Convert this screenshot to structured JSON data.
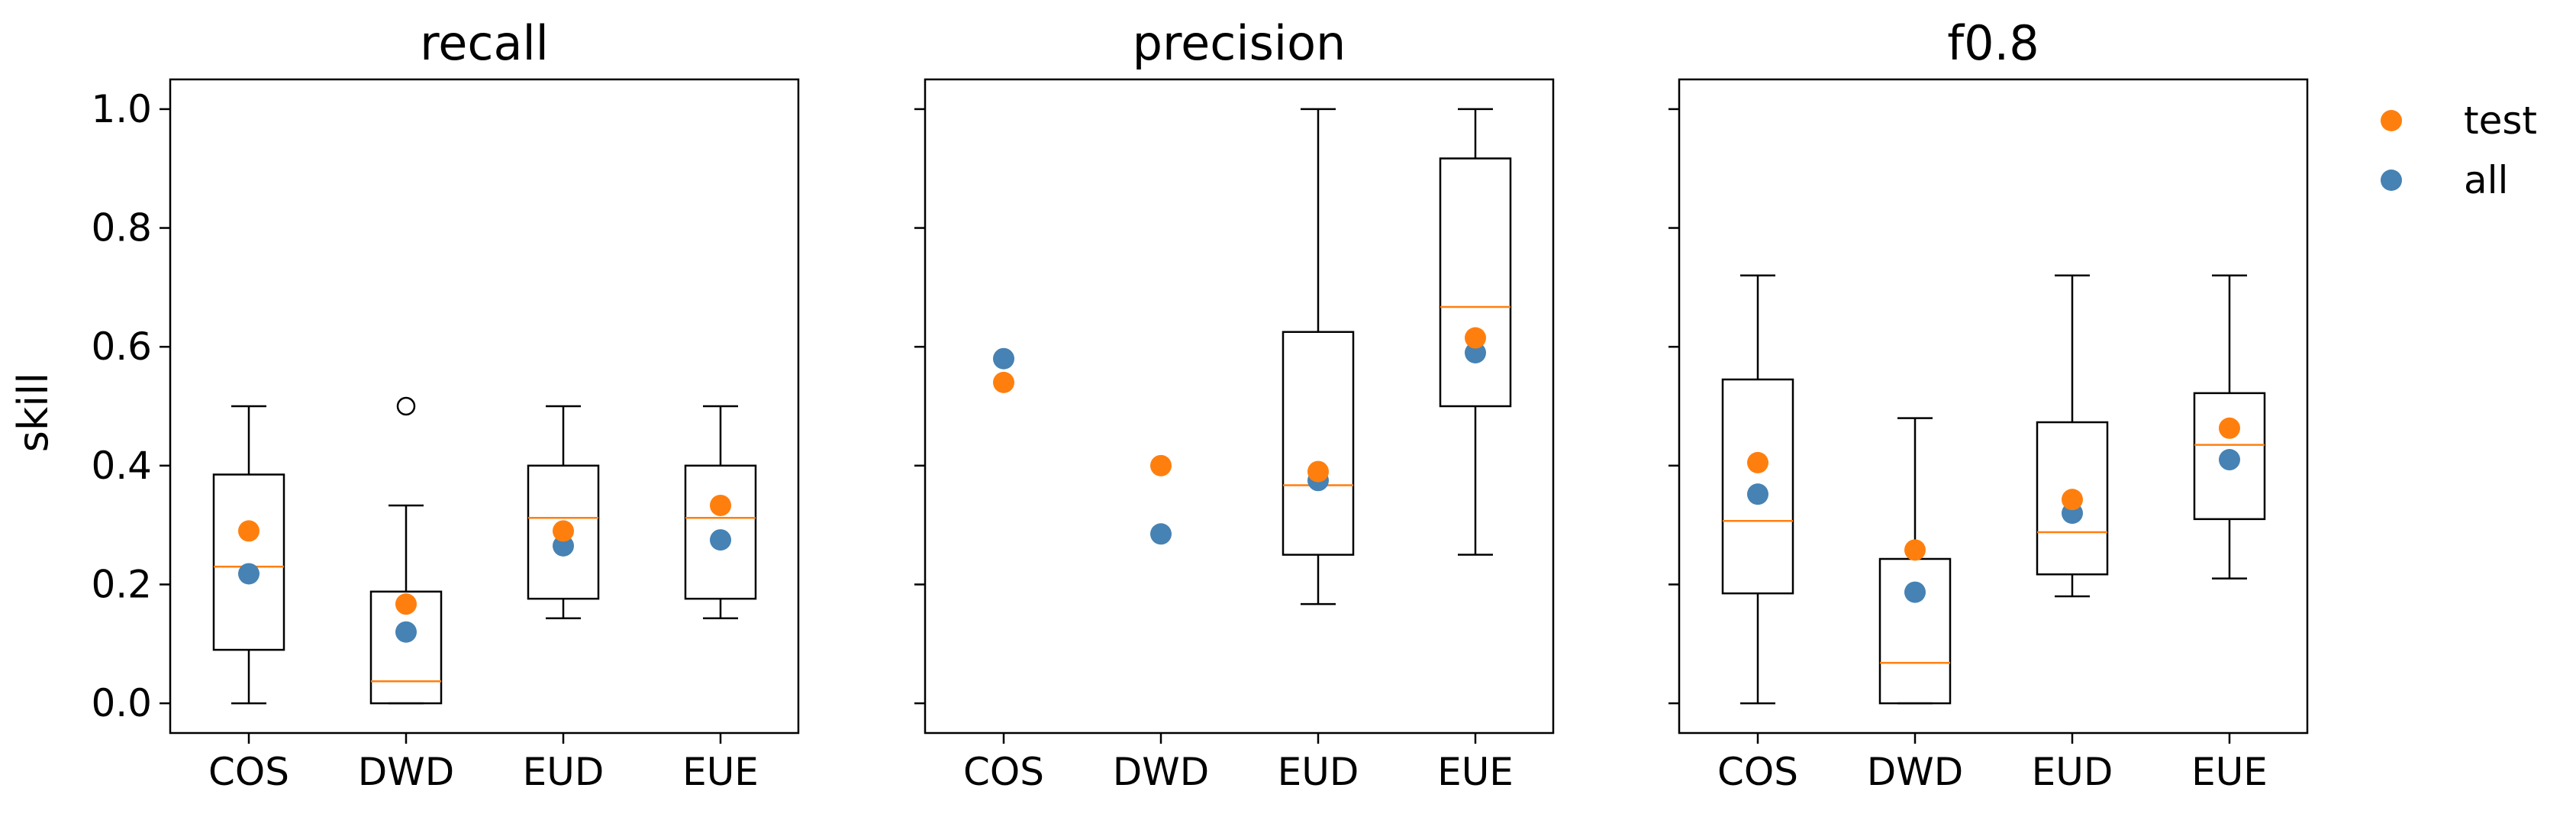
{
  "chart_data": {
    "type": "boxplot",
    "ylabel": "skill",
    "ylim": [
      -0.05,
      1.05
    ],
    "yticks": [
      0.0,
      0.2,
      0.4,
      0.6,
      0.8,
      1.0
    ],
    "ytick_labels": [
      "0.0",
      "0.2",
      "0.4",
      "0.6",
      "0.8",
      "1.0"
    ],
    "categories": [
      "COS",
      "DWD",
      "EUD",
      "EUE"
    ],
    "legend": {
      "position": "outside-right",
      "entries": [
        {
          "label": "test",
          "color": "#ff7f0e"
        },
        {
          "label": "all",
          "color": "#4682b4"
        }
      ]
    },
    "colors": {
      "test": "#ff7f0e",
      "all": "#4682b4",
      "median": "#ff7f0e",
      "box": "#000000"
    },
    "panels": [
      {
        "title": "recall",
        "boxes": [
          {
            "category": "COS",
            "whisker_low": 0.0,
            "q1": 0.09,
            "median": 0.23,
            "q3": 0.385,
            "whisker_high": 0.5,
            "outliers": []
          },
          {
            "category": "DWD",
            "whisker_low": 0.0,
            "q1": 0.0,
            "median": 0.037,
            "q3": 0.188,
            "whisker_high": 0.333,
            "outliers": [
              0.5
            ]
          },
          {
            "category": "EUD",
            "whisker_low": 0.143,
            "q1": 0.176,
            "median": 0.312,
            "q3": 0.4,
            "whisker_high": 0.5,
            "outliers": []
          },
          {
            "category": "EUE",
            "whisker_low": 0.143,
            "q1": 0.176,
            "median": 0.312,
            "q3": 0.4,
            "whisker_high": 0.5,
            "outliers": []
          }
        ],
        "series": [
          {
            "name": "test",
            "values": [
              0.29,
              0.167,
              0.29,
              0.333
            ]
          },
          {
            "name": "all",
            "values": [
              0.218,
              0.12,
              0.265,
              0.275
            ]
          }
        ]
      },
      {
        "title": "precision",
        "boxes": [
          null,
          null,
          {
            "category": "EUD",
            "whisker_low": 0.167,
            "q1": 0.25,
            "median": 0.367,
            "q3": 0.625,
            "whisker_high": 1.0,
            "outliers": []
          },
          {
            "category": "EUE",
            "whisker_low": 0.25,
            "q1": 0.5,
            "median": 0.667,
            "q3": 0.917,
            "whisker_high": 1.0,
            "outliers": []
          }
        ],
        "series": [
          {
            "name": "test",
            "values": [
              0.54,
              0.4,
              0.39,
              0.615
            ]
          },
          {
            "name": "all",
            "values": [
              0.58,
              0.285,
              0.375,
              0.59
            ]
          }
        ]
      },
      {
        "title": "f0.8",
        "boxes": [
          {
            "category": "COS",
            "whisker_low": 0.0,
            "q1": 0.185,
            "median": 0.307,
            "q3": 0.545,
            "whisker_high": 0.72,
            "outliers": []
          },
          {
            "category": "DWD",
            "whisker_low": 0.0,
            "q1": 0.0,
            "median": 0.068,
            "q3": 0.243,
            "whisker_high": 0.48,
            "outliers": []
          },
          {
            "category": "EUD",
            "whisker_low": 0.18,
            "q1": 0.217,
            "median": 0.288,
            "q3": 0.473,
            "whisker_high": 0.72,
            "outliers": []
          },
          {
            "category": "EUE",
            "whisker_low": 0.21,
            "q1": 0.31,
            "median": 0.435,
            "q3": 0.522,
            "whisker_high": 0.72,
            "outliers": []
          }
        ],
        "series": [
          {
            "name": "test",
            "values": [
              0.405,
              0.258,
              0.343,
              0.463
            ]
          },
          {
            "name": "all",
            "values": [
              0.352,
              0.187,
              0.32,
              0.41
            ]
          }
        ]
      }
    ]
  }
}
